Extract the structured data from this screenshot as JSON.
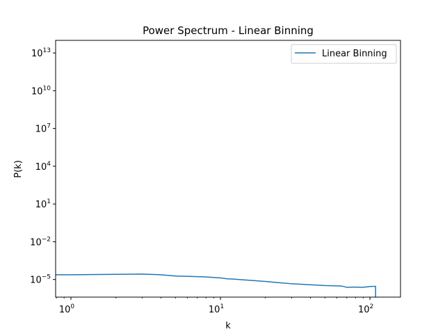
{
  "chart_data": {
    "type": "line",
    "title": "Power Spectrum - Linear Binning",
    "xlabel": "k",
    "ylabel": "P(k)",
    "xscale": "log",
    "yscale": "log",
    "xlim": [
      0.79,
      160
    ],
    "ylim": [
      4e-07,
      100000000000000.0
    ],
    "xticks": [
      {
        "base": "10",
        "exp": "0",
        "value": 1
      },
      {
        "base": "10",
        "exp": "1",
        "value": 10
      },
      {
        "base": "10",
        "exp": "2",
        "value": 100
      }
    ],
    "yticks": [
      {
        "base": "10",
        "exp": "13",
        "value": 10000000000000.0
      },
      {
        "base": "10",
        "exp": "10",
        "value": 10000000000.0
      },
      {
        "base": "10",
        "exp": "7",
        "value": 10000000.0
      },
      {
        "base": "10",
        "exp": "4",
        "value": 10000.0
      },
      {
        "base": "10",
        "exp": "1",
        "value": 10
      },
      {
        "base": "10",
        "exp": "−2",
        "value": 0.01
      },
      {
        "base": "10",
        "exp": "−5",
        "value": 1e-05
      }
    ],
    "grid": false,
    "legend_position": "top-right",
    "series": [
      {
        "name": "Linear Binning",
        "color": "#1f77b4",
        "points": [
          [
            0.79,
            2.4e-05
          ],
          [
            1.0,
            2.4e-05
          ],
          [
            1.5,
            2.5e-05
          ],
          [
            2.0,
            2.6e-05
          ],
          [
            3.0,
            2.7e-05
          ],
          [
            4.0,
            2.4e-05
          ],
          [
            5.0,
            1.9e-05
          ],
          [
            6.0,
            1.8e-05
          ],
          [
            8.0,
            1.6e-05
          ],
          [
            10.0,
            1.35e-05
          ],
          [
            11.0,
            1.15e-05
          ],
          [
            12.0,
            1.1e-05
          ],
          [
            15.0,
            9e-06
          ],
          [
            20.0,
            7e-06
          ],
          [
            25.0,
            5.5e-06
          ],
          [
            30.0,
            4.6e-06
          ],
          [
            40.0,
            3.8e-06
          ],
          [
            50.0,
            3.3e-06
          ],
          [
            60.0,
            3.1e-06
          ],
          [
            65.0,
            3e-06
          ],
          [
            70.0,
            2.4e-06
          ],
          [
            80.0,
            2.5e-06
          ],
          [
            90.0,
            2.4e-06
          ],
          [
            100.0,
            2.8e-06
          ],
          [
            107.0,
            2.9e-06
          ],
          [
            109.0,
            2.9e-06
          ],
          [
            109.0,
            4e-07
          ]
        ]
      }
    ]
  }
}
